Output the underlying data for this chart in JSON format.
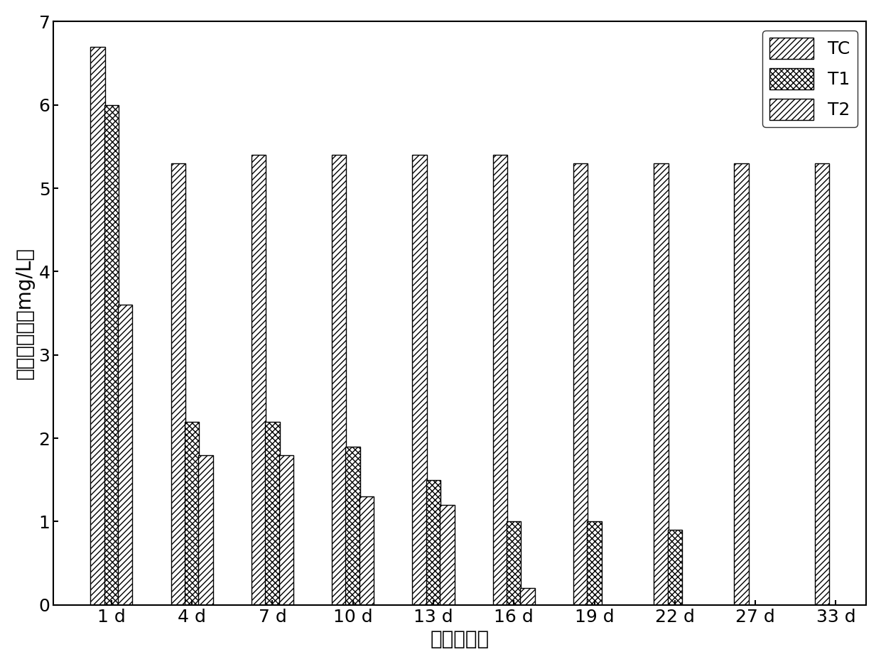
{
  "categories": [
    "1 d",
    "4 d",
    "7 d",
    "10 d",
    "13 d",
    "16 d",
    "19 d",
    "22 d",
    "27 d",
    "33 d"
  ],
  "TC": [
    6.7,
    5.3,
    5.4,
    5.4,
    5.4,
    5.4,
    5.3,
    5.3,
    5.3,
    5.3
  ],
  "T1": [
    6.0,
    2.2,
    2.2,
    1.9,
    1.5,
    1.0,
    1.0,
    0.9,
    null,
    null
  ],
  "T2": [
    3.6,
    1.8,
    1.8,
    1.3,
    1.2,
    0.2,
    null,
    null,
    null,
    null
  ],
  "ylabel": "四环素浓度（mg/L）",
  "xlabel": "时间（天）",
  "ylim": [
    0,
    7
  ],
  "yticks": [
    0,
    1,
    2,
    3,
    4,
    5,
    6,
    7
  ],
  "bar_width": 0.18,
  "background_color": "#ffffff",
  "legend_labels": [
    "TC",
    "T1",
    "T2"
  ],
  "axis_fontsize": 20,
  "tick_fontsize": 18,
  "legend_fontsize": 18
}
